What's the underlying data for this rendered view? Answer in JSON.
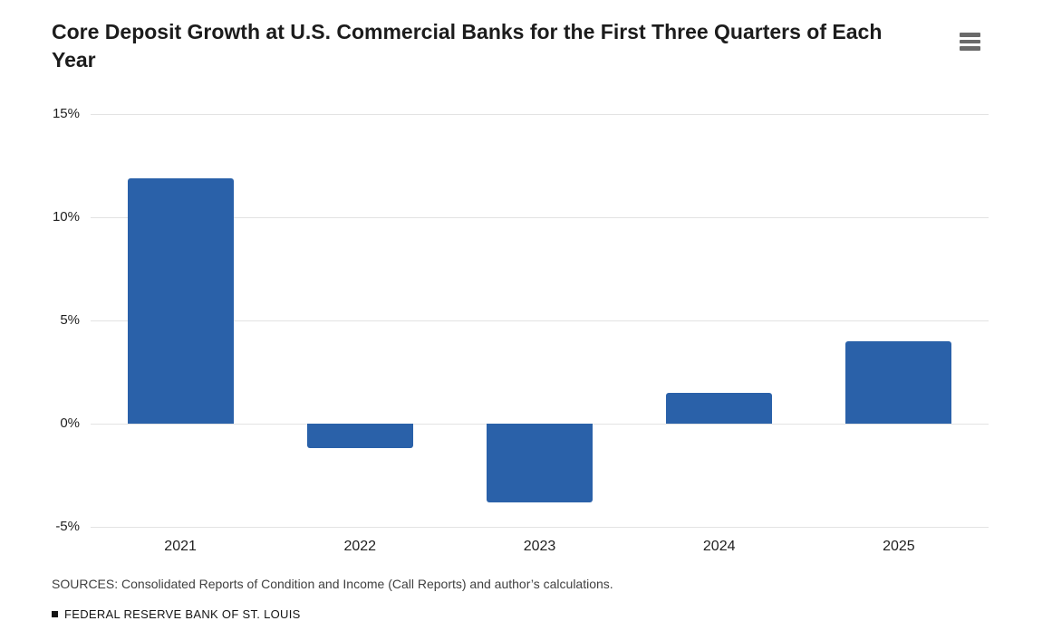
{
  "header": {
    "menu_icon": "hamburger-menu-icon"
  },
  "chart_data": {
    "type": "bar",
    "title": "Core Deposit Growth at U.S. Commercial Banks for the First Three Quarters of Each Year",
    "categories": [
      "2021",
      "2022",
      "2023",
      "2024",
      "2025"
    ],
    "values": [
      11.9,
      -1.2,
      -3.8,
      1.5,
      4.0
    ],
    "xlabel": "",
    "ylabel": "",
    "ylim": [
      -5,
      15
    ],
    "yticks": [
      15,
      10,
      5,
      0,
      -5
    ],
    "ytick_labels": [
      "15%",
      "10%",
      "5%",
      "0%",
      "-5%"
    ],
    "grid": true,
    "legend_position": "none",
    "bar_color": "#2a61a9"
  },
  "footer": {
    "sources": "SOURCES: Consolidated Reports of Condition and Income (Call Reports) and author’s calculations.",
    "branding": "FEDERAL RESERVE BANK OF ST. LOUIS"
  },
  "colors": {
    "bar": "#2a61a9",
    "grid": "#e3e3e3",
    "title_text": "#1c1c1c",
    "axis_text": "#1f1f1f",
    "source_text": "#404040",
    "branding_text": "#141414",
    "menu_icon": "#6a6a6a"
  }
}
